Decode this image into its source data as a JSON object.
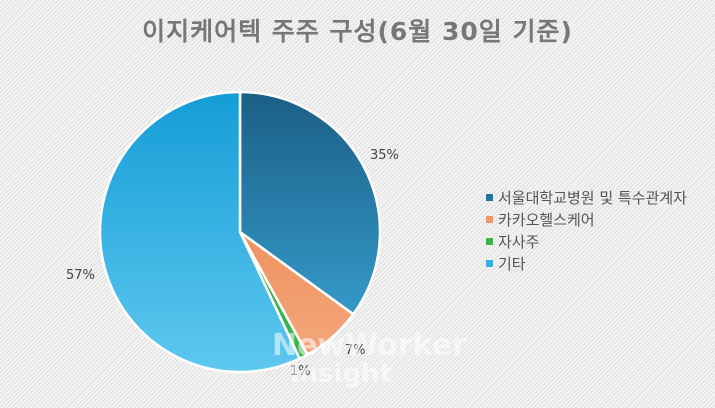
{
  "title": "이지케어텍 주주 구성(6월 30일 기준)",
  "chart_data": {
    "type": "pie",
    "title": "이지케어텍 주주 구성(6월 30일 기준)",
    "categories": [
      "서울대학교병원 및 특수관계자",
      "카카오헬스케어",
      "자사주",
      "기타"
    ],
    "values": [
      35,
      7,
      1,
      57
    ],
    "unit": "%",
    "start_angle": "12 o'clock",
    "direction": "clockwise",
    "colors": [
      "#2a82ad",
      "#ef9a6c",
      "#3cb44b",
      "#3aaee0"
    ],
    "data_labels": [
      "35%",
      "7%",
      "1%",
      "57%"
    ],
    "legend_position": "right"
  },
  "labels": {
    "s0": "35%",
    "s1": "7%",
    "s2": "1%",
    "s3": "57%"
  },
  "legend": {
    "items": [
      {
        "label": "서울대학교병원 및 특수관계자",
        "color": "#22749d"
      },
      {
        "label": "카카오헬스케어",
        "color": "#ef9a6c"
      },
      {
        "label": "자사주",
        "color": "#3cb44b"
      },
      {
        "label": "기타",
        "color": "#3aaee0"
      }
    ]
  },
  "watermark": {
    "line1": "NewWorker",
    "line2": "Insight"
  }
}
